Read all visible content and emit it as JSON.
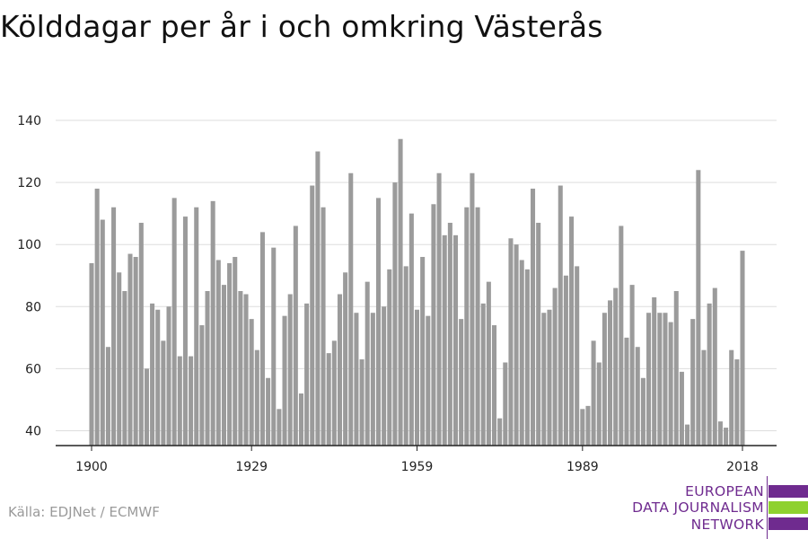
{
  "title": "Kölddagar per år i och omkring Västerås",
  "source": "Källa: EDJNet / ECMWF",
  "logo": {
    "lines": [
      "EUROPEAN",
      "DATA JOURNALISM",
      "NETWORK"
    ],
    "colors": {
      "purple": "#6f2b8f",
      "green": "#8ed12f"
    }
  },
  "colors": {
    "bar": "#9b9b9b",
    "grid": "#dddddd",
    "axis": "#222222",
    "title": "#111111",
    "source": "#9a9a9a"
  },
  "chart_data": {
    "type": "bar",
    "title": "Kölddagar per år i och omkring Västerås",
    "xlabel": "",
    "ylabel": "",
    "x_ticks": [
      1900,
      1929,
      1959,
      1989,
      2018
    ],
    "y_ticks": [
      40,
      60,
      80,
      100,
      120,
      140
    ],
    "ylim": [
      35,
      145
    ],
    "xlim": [
      1900,
      2018
    ],
    "grid": true,
    "categories": [
      1900,
      1901,
      1902,
      1903,
      1904,
      1905,
      1906,
      1907,
      1908,
      1909,
      1910,
      1911,
      1912,
      1913,
      1914,
      1915,
      1916,
      1917,
      1918,
      1919,
      1920,
      1921,
      1922,
      1923,
      1924,
      1925,
      1926,
      1927,
      1928,
      1929,
      1930,
      1931,
      1932,
      1933,
      1934,
      1935,
      1936,
      1937,
      1938,
      1939,
      1940,
      1941,
      1942,
      1943,
      1944,
      1945,
      1946,
      1947,
      1948,
      1949,
      1950,
      1951,
      1952,
      1953,
      1954,
      1955,
      1956,
      1957,
      1958,
      1959,
      1960,
      1961,
      1962,
      1963,
      1964,
      1965,
      1966,
      1967,
      1968,
      1969,
      1970,
      1971,
      1972,
      1973,
      1974,
      1975,
      1976,
      1977,
      1978,
      1979,
      1980,
      1981,
      1982,
      1983,
      1984,
      1985,
      1986,
      1987,
      1988,
      1989,
      1990,
      1991,
      1992,
      1993,
      1994,
      1995,
      1996,
      1997,
      1998,
      1999,
      2000,
      2001,
      2002,
      2003,
      2004,
      2005,
      2006,
      2007,
      2008,
      2009,
      2010,
      2011,
      2012,
      2013,
      2014,
      2015,
      2016,
      2017,
      2018
    ],
    "values": [
      94,
      118,
      108,
      67,
      112,
      91,
      85,
      97,
      96,
      107,
      60,
      81,
      79,
      69,
      80,
      115,
      64,
      109,
      64,
      112,
      74,
      85,
      114,
      95,
      87,
      94,
      96,
      85,
      84,
      76,
      66,
      104,
      57,
      99,
      47,
      77,
      84,
      106,
      52,
      81,
      119,
      130,
      112,
      65,
      69,
      84,
      91,
      123,
      78,
      63,
      88,
      78,
      115,
      80,
      92,
      120,
      134,
      93,
      110,
      79,
      96,
      77,
      113,
      123,
      103,
      107,
      103,
      76,
      112,
      123,
      112,
      81,
      88,
      74,
      44,
      62,
      102,
      100,
      95,
      92,
      118,
      107,
      78,
      79,
      86,
      119,
      90,
      109,
      93,
      47,
      48,
      69,
      62,
      78,
      82,
      86,
      106,
      70,
      87,
      67,
      57,
      78,
      83,
      78,
      78,
      75,
      85,
      59,
      42,
      76,
      124,
      66,
      81,
      86,
      43,
      41,
      66,
      63,
      98
    ]
  }
}
